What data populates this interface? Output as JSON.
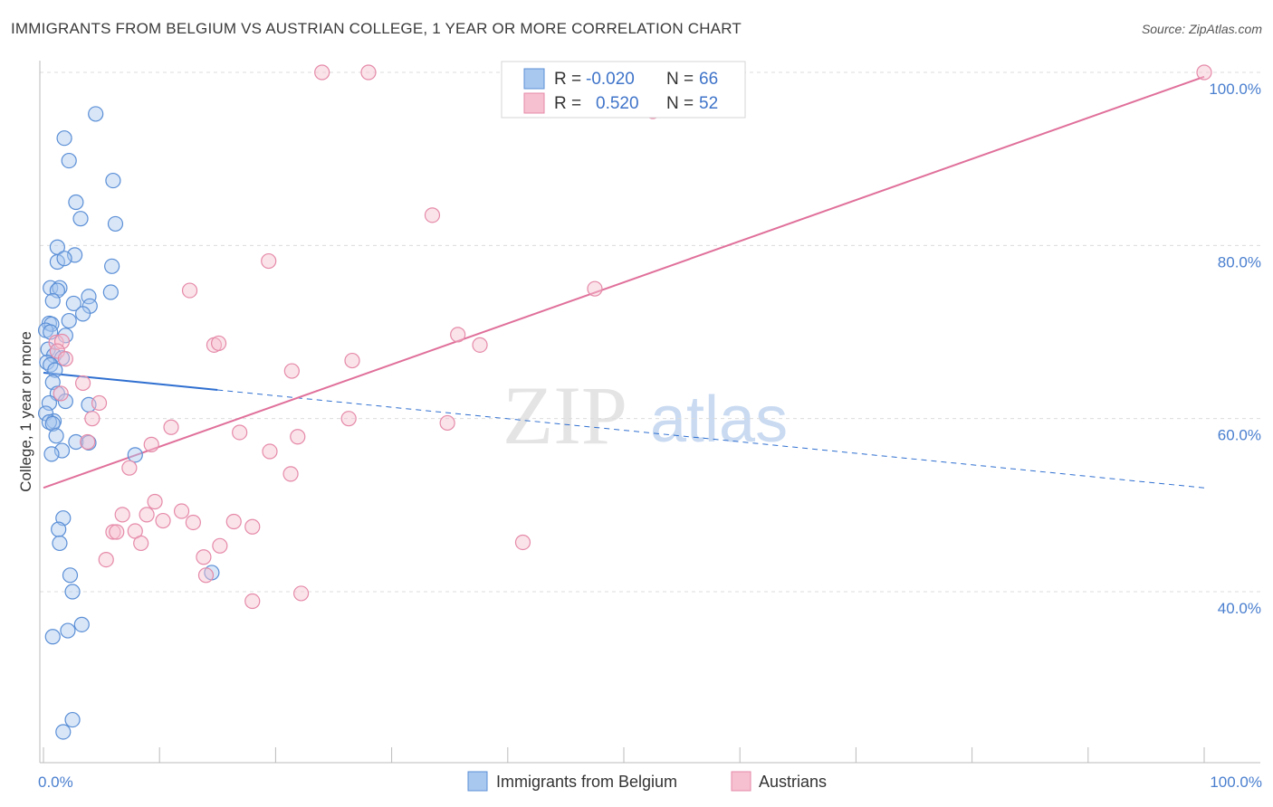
{
  "title": "IMMIGRANTS FROM BELGIUM VS AUSTRIAN COLLEGE, 1 YEAR OR MORE CORRELATION CHART",
  "source": "Source: ZipAtlas.com",
  "watermark": {
    "zip": "ZIP",
    "atlas": "atlas"
  },
  "colors": {
    "blue_fill": "#a9c8f0",
    "blue_stroke": "#5b8fd6",
    "blue_line": "#2f6fd0",
    "pink_fill": "#f6c0d0",
    "pink_stroke": "#e58aa8",
    "pink_line": "#e0709a",
    "grid": "#dcdcdc",
    "axis": "#bbbbbb",
    "tick_text": "#4a7fcf"
  },
  "legend": {
    "rows": [
      {
        "r_label": "R =",
        "r_value": "-0.020",
        "n_label": "N =",
        "n_value": "66",
        "series": "blue"
      },
      {
        "r_label": "R =",
        "r_value": "0.520",
        "n_label": "N =",
        "n_value": "52",
        "series": "pink"
      }
    ]
  },
  "bottom_legend": [
    "Immigrants from Belgium",
    "Austrians"
  ],
  "chart_data": {
    "type": "scatter",
    "title": "IMMIGRANTS FROM BELGIUM VS AUSTRIAN COLLEGE, 1 YEAR OR MORE CORRELATION CHART",
    "xlabel": "",
    "ylabel": "College, 1 year or more",
    "xlim": [
      0,
      100
    ],
    "ylim": [
      22,
      102
    ],
    "x_tick_labels": [
      {
        "value": 0,
        "label": "0.0%"
      },
      {
        "value": 100,
        "label": "100.0%"
      }
    ],
    "y_tick_labels": [
      {
        "value": 40,
        "label": "40.0%"
      },
      {
        "value": 60,
        "label": "60.0%"
      },
      {
        "value": 80,
        "label": "80.0%"
      },
      {
        "value": 100,
        "label": "100.0%"
      }
    ],
    "y_gridlines": [
      40,
      60,
      80,
      100
    ],
    "series": [
      {
        "name": "Immigrants from Belgium",
        "color": "blue",
        "R": -0.02,
        "N": 66,
        "trend": {
          "x0": 0,
          "y0": 65.3,
          "x1": 100,
          "y1": 52.0,
          "solid_until_x": 15
        },
        "points": [
          [
            4.5,
            95.2
          ],
          [
            1.8,
            92.4
          ],
          [
            2.2,
            89.8
          ],
          [
            6.0,
            87.5
          ],
          [
            2.8,
            85.0
          ],
          [
            3.2,
            83.1
          ],
          [
            6.2,
            82.5
          ],
          [
            1.2,
            79.8
          ],
          [
            2.7,
            78.9
          ],
          [
            1.2,
            78.1
          ],
          [
            1.8,
            78.5
          ],
          [
            5.9,
            77.6
          ],
          [
            0.6,
            75.1
          ],
          [
            1.4,
            75.1
          ],
          [
            1.2,
            74.8
          ],
          [
            5.8,
            74.6
          ],
          [
            3.9,
            74.1
          ],
          [
            0.8,
            73.6
          ],
          [
            2.6,
            73.3
          ],
          [
            4.0,
            73.0
          ],
          [
            3.4,
            72.1
          ],
          [
            0.5,
            71.0
          ],
          [
            0.7,
            70.9
          ],
          [
            2.2,
            71.3
          ],
          [
            0.2,
            70.2
          ],
          [
            0.6,
            70.0
          ],
          [
            1.9,
            69.6
          ],
          [
            0.4,
            68.0
          ],
          [
            0.9,
            67.3
          ],
          [
            1.6,
            67.0
          ],
          [
            0.3,
            66.5
          ],
          [
            0.6,
            66.2
          ],
          [
            1.0,
            65.6
          ],
          [
            0.8,
            64.2
          ],
          [
            1.2,
            62.9
          ],
          [
            1.9,
            62.0
          ],
          [
            0.5,
            61.8
          ],
          [
            3.9,
            61.6
          ],
          [
            0.2,
            60.6
          ],
          [
            0.9,
            59.7
          ],
          [
            0.5,
            59.6
          ],
          [
            0.8,
            59.4
          ],
          [
            1.1,
            58.0
          ],
          [
            2.8,
            57.3
          ],
          [
            3.9,
            57.2
          ],
          [
            1.6,
            56.3
          ],
          [
            0.7,
            55.9
          ],
          [
            7.9,
            55.8
          ],
          [
            1.7,
            48.5
          ],
          [
            1.3,
            47.2
          ],
          [
            1.4,
            45.6
          ],
          [
            14.5,
            42.2
          ],
          [
            2.3,
            41.9
          ],
          [
            2.5,
            40.0
          ],
          [
            3.3,
            36.2
          ],
          [
            2.1,
            35.5
          ],
          [
            0.8,
            34.8
          ],
          [
            2.5,
            25.2
          ],
          [
            1.7,
            23.8
          ]
        ]
      },
      {
        "name": "Austrians",
        "color": "pink",
        "R": 0.52,
        "N": 52,
        "trend": {
          "x0": 0,
          "y0": 52.0,
          "x1": 100,
          "y1": 99.5
        },
        "points": [
          [
            24.0,
            100.0
          ],
          [
            28.0,
            100.0
          ],
          [
            100.0,
            100.0
          ],
          [
            52.5,
            95.5
          ],
          [
            33.5,
            83.5
          ],
          [
            19.4,
            78.2
          ],
          [
            12.6,
            74.8
          ],
          [
            47.5,
            75.0
          ],
          [
            14.7,
            68.5
          ],
          [
            15.1,
            68.7
          ],
          [
            35.7,
            69.7
          ],
          [
            37.6,
            68.5
          ],
          [
            1.1,
            68.8
          ],
          [
            1.6,
            68.9
          ],
          [
            1.2,
            67.8
          ],
          [
            1.9,
            66.9
          ],
          [
            26.6,
            66.7
          ],
          [
            21.4,
            65.5
          ],
          [
            3.4,
            64.1
          ],
          [
            1.5,
            62.9
          ],
          [
            4.8,
            61.8
          ],
          [
            4.2,
            60.0
          ],
          [
            26.3,
            60.0
          ],
          [
            34.8,
            59.5
          ],
          [
            11.0,
            59.0
          ],
          [
            16.9,
            58.4
          ],
          [
            21.9,
            57.9
          ],
          [
            3.8,
            57.3
          ],
          [
            9.3,
            57.0
          ],
          [
            19.5,
            56.2
          ],
          [
            7.4,
            54.3
          ],
          [
            21.3,
            53.6
          ],
          [
            9.6,
            50.4
          ],
          [
            6.8,
            48.9
          ],
          [
            11.9,
            49.3
          ],
          [
            8.9,
            48.9
          ],
          [
            10.3,
            48.2
          ],
          [
            12.9,
            48.0
          ],
          [
            16.4,
            48.1
          ],
          [
            18.0,
            47.5
          ],
          [
            6.0,
            46.9
          ],
          [
            6.3,
            46.9
          ],
          [
            7.9,
            47.0
          ],
          [
            8.4,
            45.6
          ],
          [
            41.3,
            45.7
          ],
          [
            15.2,
            45.3
          ],
          [
            13.8,
            44.0
          ],
          [
            5.4,
            43.7
          ],
          [
            14.0,
            41.9
          ],
          [
            22.2,
            39.8
          ],
          [
            18.0,
            38.9
          ]
        ]
      }
    ]
  }
}
